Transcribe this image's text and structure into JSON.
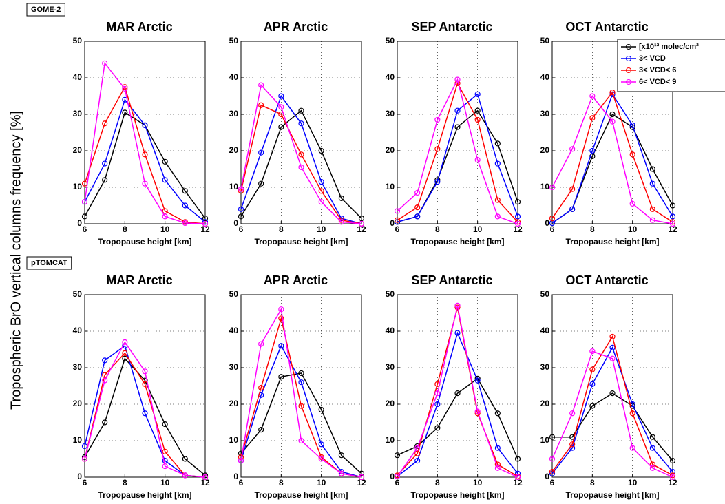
{
  "ylabel": "Tropospheric BrO vertical columns frequency [%]",
  "chart_data": [
    {
      "type": "line",
      "panel_label": "GOME-2",
      "title": "MAR Arctic",
      "xlabel": "Tropopause height [km]",
      "x": [
        6,
        7,
        8,
        9,
        10,
        11,
        12
      ],
      "xlim": [
        6,
        12
      ],
      "xticks": [
        6,
        8,
        10,
        12
      ],
      "ylim": [
        0,
        50
      ],
      "yticks": [
        0,
        10,
        20,
        30,
        40,
        50
      ],
      "grid": true,
      "series": [
        {
          "color": "#000000",
          "values": [
            2,
            12,
            30.5,
            27,
            17,
            9,
            1.5
          ]
        },
        {
          "color": "#0000ff",
          "values": [
            6,
            16.5,
            34,
            27,
            12,
            5,
            0.5
          ]
        },
        {
          "color": "#ff0000",
          "values": [
            11,
            27.5,
            37.5,
            19,
            3.5,
            0.5,
            0
          ]
        },
        {
          "color": "#ff00ff",
          "values": [
            6,
            44,
            37,
            11,
            2,
            0.2,
            0
          ]
        }
      ]
    },
    {
      "type": "line",
      "title": "APR Arctic",
      "xlabel": "Tropopause height [km]",
      "x": [
        6,
        7,
        8,
        9,
        10,
        11,
        12
      ],
      "xlim": [
        6,
        12
      ],
      "xticks": [
        6,
        8,
        10,
        12
      ],
      "ylim": [
        0,
        50
      ],
      "yticks": [
        0,
        10,
        20,
        30,
        40,
        50
      ],
      "grid": true,
      "series": [
        {
          "color": "#000000",
          "values": [
            2,
            11,
            26.5,
            31,
            20,
            7,
            1.5
          ]
        },
        {
          "color": "#0000ff",
          "values": [
            4,
            19.5,
            35,
            27.5,
            11.5,
            1.5,
            0
          ]
        },
        {
          "color": "#ff0000",
          "values": [
            9,
            32.5,
            30,
            19,
            9,
            1,
            0
          ]
        },
        {
          "color": "#ff00ff",
          "values": [
            9.5,
            38,
            32,
            15.5,
            6,
            0.5,
            0
          ]
        }
      ]
    },
    {
      "type": "line",
      "title": "SEP Antarctic",
      "xlabel": "Tropopause height [km]",
      "x": [
        6,
        7,
        8,
        9,
        10,
        11,
        12
      ],
      "xlim": [
        6,
        12
      ],
      "xticks": [
        6,
        8,
        10,
        12
      ],
      "ylim": [
        0,
        50
      ],
      "yticks": [
        0,
        10,
        20,
        30,
        40,
        50
      ],
      "grid": true,
      "series": [
        {
          "color": "#000000",
          "values": [
            0.5,
            2,
            12,
            26.5,
            31,
            22,
            6
          ]
        },
        {
          "color": "#0000ff",
          "values": [
            0.5,
            2,
            11.5,
            31,
            35.5,
            16.5,
            2
          ]
        },
        {
          "color": "#ff0000",
          "values": [
            1,
            4.5,
            20.5,
            38.5,
            28.5,
            6.5,
            0.5
          ]
        },
        {
          "color": "#ff00ff",
          "values": [
            3.5,
            8.5,
            28.5,
            39.5,
            17.5,
            2,
            0
          ]
        }
      ]
    },
    {
      "type": "line",
      "title": "OCT Antarctic",
      "xlabel": "Tropopause height [km]",
      "legend": "upper right",
      "x": [
        6,
        7,
        8,
        9,
        10,
        11,
        12
      ],
      "xlim": [
        6,
        12
      ],
      "xticks": [
        6,
        8,
        10,
        12
      ],
      "ylim": [
        0,
        50
      ],
      "yticks": [
        0,
        10,
        20,
        30,
        40,
        50
      ],
      "grid": true,
      "series": [
        {
          "name": "[x10¹³ molec/cm²",
          "color": "#000000",
          "values": [
            0.2,
            4,
            18.5,
            30,
            26.5,
            15,
            5
          ]
        },
        {
          "name": "3< VCD",
          "color": "#0000ff",
          "values": [
            0.2,
            4,
            20,
            35.5,
            27,
            11,
            2
          ]
        },
        {
          "name": "3< VCD< 6",
          "color": "#ff0000",
          "values": [
            1.5,
            9.5,
            29,
            36,
            19,
            4,
            0.5
          ]
        },
        {
          "name": "6< VCD< 9",
          "color": "#ff00ff",
          "values": [
            10,
            20.5,
            35,
            28,
            5.5,
            1,
            0
          ]
        }
      ]
    },
    {
      "type": "line",
      "panel_label": "pTOMCAT",
      "title": "MAR Arctic",
      "xlabel": "Tropopause height [km]",
      "x": [
        6,
        7,
        8,
        9,
        10,
        11,
        12
      ],
      "xlim": [
        6,
        12
      ],
      "xticks": [
        6,
        8,
        10,
        12
      ],
      "ylim": [
        0,
        50
      ],
      "yticks": [
        0,
        10,
        20,
        30,
        40,
        50
      ],
      "grid": true,
      "series": [
        {
          "color": "#000000",
          "values": [
            5.5,
            15,
            32.5,
            26.5,
            14.5,
            5,
            0.5
          ]
        },
        {
          "color": "#0000ff",
          "values": [
            8.5,
            32,
            36,
            17.5,
            4.5,
            0.5,
            0
          ]
        },
        {
          "color": "#ff0000",
          "values": [
            5,
            28,
            34,
            25.5,
            7,
            0.5,
            0
          ]
        },
        {
          "color": "#ff00ff",
          "values": [
            5,
            26.5,
            37,
            29,
            3,
            0.5,
            0
          ]
        }
      ]
    },
    {
      "type": "line",
      "title": "APR Arctic",
      "xlabel": "Tropopause height [km]",
      "x": [
        6,
        7,
        8,
        9,
        10,
        11,
        12
      ],
      "xlim": [
        6,
        12
      ],
      "xticks": [
        6,
        8,
        10,
        12
      ],
      "ylim": [
        0,
        50
      ],
      "yticks": [
        0,
        10,
        20,
        30,
        40,
        50
      ],
      "grid": true,
      "series": [
        {
          "color": "#000000",
          "values": [
            6.5,
            13,
            27.5,
            28.5,
            18.5,
            6,
            1
          ]
        },
        {
          "color": "#0000ff",
          "values": [
            4.5,
            22.5,
            36,
            26,
            9,
            1.5,
            0
          ]
        },
        {
          "color": "#ff0000",
          "values": [
            5.5,
            24.5,
            43.5,
            19.5,
            5.5,
            1,
            0
          ]
        },
        {
          "color": "#ff00ff",
          "values": [
            4.5,
            36.5,
            46,
            10,
            5,
            1,
            0
          ]
        }
      ]
    },
    {
      "type": "line",
      "title": "SEP Antarctic",
      "xlabel": "Tropopause height [km]",
      "x": [
        6,
        7,
        8,
        9,
        10,
        11,
        12
      ],
      "xlim": [
        6,
        12
      ],
      "xticks": [
        6,
        8,
        10,
        12
      ],
      "ylim": [
        0,
        50
      ],
      "yticks": [
        0,
        10,
        20,
        30,
        40,
        50
      ],
      "grid": true,
      "series": [
        {
          "color": "#000000",
          "values": [
            6,
            8.5,
            13.5,
            23,
            27,
            17.5,
            5
          ]
        },
        {
          "color": "#0000ff",
          "values": [
            0.2,
            4.5,
            20,
            39.5,
            26.5,
            8,
            1
          ]
        },
        {
          "color": "#ff0000",
          "values": [
            0.5,
            6.5,
            25.5,
            46.5,
            17.5,
            3.5,
            0.2
          ]
        },
        {
          "color": "#ff00ff",
          "values": [
            0.2,
            8,
            23,
            47,
            18,
            2.5,
            0
          ]
        }
      ]
    },
    {
      "type": "line",
      "title": "OCT Antarctic",
      "xlabel": "Tropopause height [km]",
      "x": [
        6,
        7,
        8,
        9,
        10,
        11,
        12
      ],
      "xlim": [
        6,
        12
      ],
      "xticks": [
        6,
        8,
        10,
        12
      ],
      "ylim": [
        0,
        50
      ],
      "yticks": [
        0,
        10,
        20,
        30,
        40,
        50
      ],
      "grid": true,
      "series": [
        {
          "color": "#000000",
          "values": [
            11,
            11,
            19.5,
            23,
            19.5,
            11,
            4.5
          ]
        },
        {
          "color": "#0000ff",
          "values": [
            1,
            8,
            25.5,
            35.5,
            20,
            8,
            1.5
          ]
        },
        {
          "color": "#ff0000",
          "values": [
            1.5,
            9,
            29.5,
            38.5,
            17.5,
            3.5,
            0.5
          ]
        },
        {
          "color": "#ff00ff",
          "values": [
            5,
            17.5,
            34.5,
            32.5,
            8,
            2.5,
            0
          ]
        }
      ]
    }
  ]
}
